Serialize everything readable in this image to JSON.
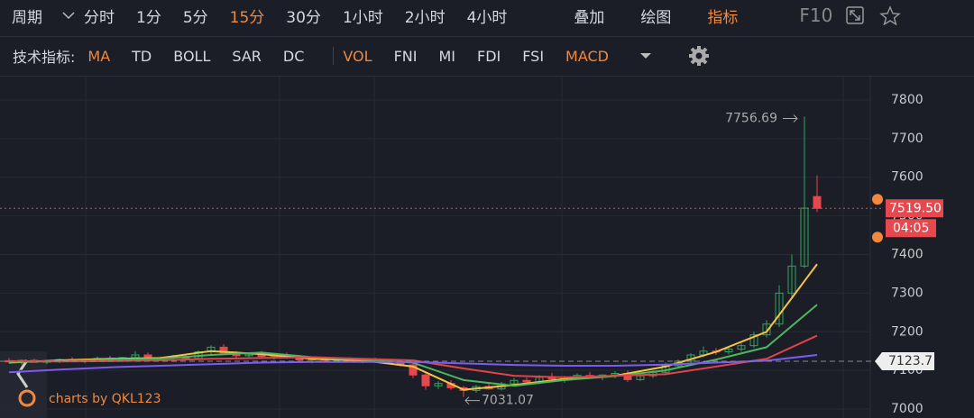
{
  "toolbar": {
    "period_label": "周期",
    "timeframes": [
      "分时",
      "1分",
      "5分",
      "15分",
      "30分",
      "1小时",
      "2小时",
      "4小时"
    ],
    "highlighted_timeframes": [
      3
    ],
    "tools": [
      "叠加",
      "绘图",
      "指标"
    ],
    "highlighted_tools": [
      2
    ],
    "f10": "F10",
    "highlight_color": "#f0883e"
  },
  "indicators": {
    "label": "技术指标:",
    "main": [
      "MA",
      "TD",
      "BOLL",
      "SAR",
      "DC"
    ],
    "sub": [
      "VOL",
      "FNI",
      "MI",
      "FDI",
      "FSI",
      "MACD"
    ],
    "highlighted_main": [
      0
    ],
    "highlighted_sub": [
      0,
      5
    ]
  },
  "watermark": "charts by QKL123",
  "chart_data": {
    "type": "candlestick",
    "ylim": [
      6976.7,
      7860.6
    ],
    "yticks": [
      7000,
      7100,
      7200,
      7300,
      7400,
      7500,
      7600,
      7700,
      7800
    ],
    "grid": true,
    "up_color": "#2ea55a",
    "down_color": "#e5484d",
    "candles": [
      [
        7125,
        7132,
        7118,
        7122
      ],
      [
        7122,
        7128,
        7115,
        7126
      ],
      [
        7126,
        7130,
        7120,
        7121
      ],
      [
        7121,
        7127,
        7116,
        7124
      ],
      [
        7124,
        7131,
        7119,
        7128
      ],
      [
        7128,
        7134,
        7122,
        7125
      ],
      [
        7125,
        7130,
        7119,
        7127
      ],
      [
        7127,
        7136,
        7123,
        7131
      ],
      [
        7131,
        7138,
        7125,
        7129
      ],
      [
        7129,
        7135,
        7122,
        7133
      ],
      [
        7133,
        7150,
        7128,
        7140
      ],
      [
        7140,
        7146,
        7126,
        7130
      ],
      [
        7130,
        7136,
        7124,
        7133
      ],
      [
        7133,
        7140,
        7127,
        7136
      ],
      [
        7136,
        7142,
        7128,
        7131
      ],
      [
        7131,
        7152,
        7128,
        7148
      ],
      [
        7148,
        7165,
        7142,
        7160
      ],
      [
        7160,
        7168,
        7140,
        7145
      ],
      [
        7145,
        7150,
        7132,
        7138
      ],
      [
        7138,
        7146,
        7130,
        7142
      ],
      [
        7142,
        7150,
        7134,
        7136
      ],
      [
        7136,
        7144,
        7128,
        7140
      ],
      [
        7140,
        7146,
        7130,
        7133
      ],
      [
        7133,
        7140,
        7125,
        7127
      ],
      [
        7127,
        7135,
        7118,
        7130
      ],
      [
        7130,
        7136,
        7122,
        7126
      ],
      [
        7126,
        7133,
        7120,
        7128
      ],
      [
        7128,
        7134,
        7121,
        7124
      ],
      [
        7124,
        7131,
        7118,
        7127
      ],
      [
        7127,
        7133,
        7120,
        7125
      ],
      [
        7125,
        7130,
        7118,
        7121
      ],
      [
        7121,
        7126,
        7110,
        7114
      ],
      [
        7114,
        7118,
        7080,
        7088
      ],
      [
        7088,
        7092,
        7050,
        7060
      ],
      [
        7060,
        7072,
        7052,
        7066
      ],
      [
        7066,
        7075,
        7050,
        7055
      ],
      [
        7055,
        7060,
        7031.07,
        7048
      ],
      [
        7048,
        7062,
        7042,
        7058
      ],
      [
        7058,
        7066,
        7050,
        7052
      ],
      [
        7052,
        7070,
        7048,
        7065
      ],
      [
        7065,
        7080,
        7060,
        7074
      ],
      [
        7074,
        7082,
        7066,
        7070
      ],
      [
        7070,
        7088,
        7064,
        7082
      ],
      [
        7082,
        7094,
        7074,
        7078
      ],
      [
        7078,
        7086,
        7068,
        7083
      ],
      [
        7083,
        7092,
        7076,
        7087
      ],
      [
        7087,
        7096,
        7079,
        7082
      ],
      [
        7082,
        7090,
        7074,
        7088
      ],
      [
        7088,
        7098,
        7080,
        7092
      ],
      [
        7092,
        7100,
        7070,
        7076
      ],
      [
        7076,
        7090,
        7072,
        7086
      ],
      [
        7086,
        7100,
        7080,
        7095
      ],
      [
        7095,
        7120,
        7090,
        7112
      ],
      [
        7112,
        7128,
        7105,
        7124
      ],
      [
        7124,
        7145,
        7118,
        7140
      ],
      [
        7140,
        7162,
        7134,
        7150
      ],
      [
        7150,
        7158,
        7140,
        7148
      ],
      [
        7148,
        7160,
        7142,
        7155
      ],
      [
        7155,
        7170,
        7148,
        7164
      ],
      [
        7164,
        7200,
        7158,
        7192
      ],
      [
        7192,
        7230,
        7185,
        7220
      ],
      [
        7220,
        7320,
        7212,
        7300
      ],
      [
        7300,
        7400,
        7290,
        7370
      ],
      [
        7370,
        7756.69,
        7365,
        7520
      ],
      [
        7550,
        7605,
        7510,
        7519.5
      ]
    ],
    "ma_x": [
      0,
      4,
      8,
      12,
      16,
      20,
      24,
      28,
      32,
      36,
      40,
      44,
      48,
      52,
      56,
      60,
      64
    ],
    "series": [
      {
        "color": "#f5c542",
        "values": [
          7120,
          7126,
          7130,
          7132,
          7150,
          7142,
          7130,
          7126,
          7110,
          7050,
          7062,
          7078,
          7086,
          7110,
          7148,
          7200,
          7375
        ]
      },
      {
        "color": "#4cb85c",
        "values": [
          7122,
          7124,
          7128,
          7130,
          7140,
          7146,
          7134,
          7128,
          7120,
          7075,
          7060,
          7075,
          7085,
          7100,
          7128,
          7160,
          7270
        ]
      },
      {
        "color": "#e0434a",
        "values": [
          7124,
          7123,
          7124,
          7126,
          7130,
          7132,
          7134,
          7130,
          7126,
          7105,
          7086,
          7082,
          7086,
          7090,
          7110,
          7130,
          7190
        ]
      },
      {
        "color": "#7b5cf0",
        "values": [
          7095,
          7102,
          7108,
          7112,
          7116,
          7120,
          7122,
          7122,
          7122,
          7118,
          7114,
          7112,
          7112,
          7115,
          7120,
          7125,
          7140
        ]
      }
    ],
    "high_label": 7756.69,
    "low_label": 7031.07,
    "last_price": {
      "value": 7519.5,
      "label": "7519.50"
    },
    "countdown": "04:05",
    "ref_price": 7123.7
  }
}
